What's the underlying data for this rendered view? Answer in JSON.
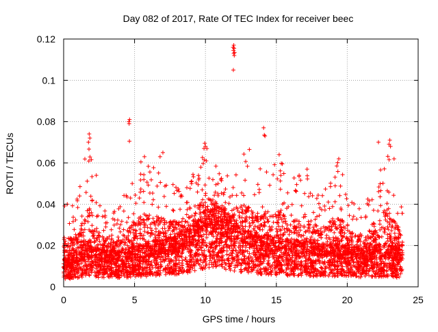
{
  "chart_data": {
    "type": "scatter",
    "title": "Day 082 of 2017, Rate Of TEC Index for receiver beec",
    "xlabel": "GPS time / hours",
    "ylabel": "ROTI / TECUs",
    "xlim": [
      0,
      25
    ],
    "ylim": [
      0,
      0.12
    ],
    "xticks": [
      0,
      5,
      10,
      15,
      20,
      25
    ],
    "xtick_labels": [
      "0",
      "5",
      "10",
      "15",
      "20",
      "25"
    ],
    "yticks": [
      0,
      0.02,
      0.04,
      0.06,
      0.08,
      0.1,
      0.12
    ],
    "ytick_labels": [
      "0",
      "0.02",
      "0.04",
      "0.06",
      "0.08",
      "0.1",
      "0.12"
    ],
    "grid": true,
    "marker": "+",
    "color": "#ff0000",
    "data_range_x": [
      0,
      23.9
    ],
    "series": [
      {
        "name": "ROTI",
        "profile": [
          [
            0.0,
            0.0095,
            0.044
          ],
          [
            0.5,
            0.011,
            0.039
          ],
          [
            1.0,
            0.012,
            0.046
          ],
          [
            1.5,
            0.014,
            0.062
          ],
          [
            1.8,
            0.015,
            0.074
          ],
          [
            2.2,
            0.013,
            0.054
          ],
          [
            2.8,
            0.012,
            0.04
          ],
          [
            3.5,
            0.012,
            0.036
          ],
          [
            4.0,
            0.012,
            0.04
          ],
          [
            4.6,
            0.013,
            0.05
          ],
          [
            5.5,
            0.014,
            0.062
          ],
          [
            6.5,
            0.015,
            0.058
          ],
          [
            7.5,
            0.016,
            0.052
          ],
          [
            8.5,
            0.018,
            0.048
          ],
          [
            9.5,
            0.022,
            0.06
          ],
          [
            10.0,
            0.025,
            0.068
          ],
          [
            11.0,
            0.026,
            0.06
          ],
          [
            11.7,
            0.023,
            0.052
          ],
          [
            12.5,
            0.02,
            0.066
          ],
          [
            13.5,
            0.017,
            0.058
          ],
          [
            14.2,
            0.017,
            0.06
          ],
          [
            15.2,
            0.016,
            0.063
          ],
          [
            16.0,
            0.015,
            0.052
          ],
          [
            17.0,
            0.015,
            0.06
          ],
          [
            18.0,
            0.014,
            0.046
          ],
          [
            19.3,
            0.014,
            0.061
          ],
          [
            20.5,
            0.013,
            0.04
          ],
          [
            21.5,
            0.013,
            0.044
          ],
          [
            22.3,
            0.014,
            0.06
          ],
          [
            22.9,
            0.014,
            0.07
          ],
          [
            23.9,
            0.012,
            0.038
          ]
        ],
        "notable_points": [
          [
            12.0,
            0.117
          ],
          [
            11.95,
            0.116
          ],
          [
            12.02,
            0.1155
          ],
          [
            11.98,
            0.1145
          ],
          [
            12.05,
            0.1135
          ],
          [
            12.0,
            0.113
          ],
          [
            12.03,
            0.112
          ],
          [
            11.97,
            0.105
          ],
          [
            4.65,
            0.081
          ],
          [
            4.6,
            0.08
          ],
          [
            4.62,
            0.079
          ],
          [
            4.64,
            0.0705
          ],
          [
            14.1,
            0.077
          ],
          [
            14.15,
            0.0735
          ],
          [
            14.2,
            0.073
          ],
          [
            1.8,
            0.074
          ],
          [
            1.85,
            0.072
          ],
          [
            1.75,
            0.07
          ],
          [
            9.95,
            0.0695
          ],
          [
            10.0,
            0.068
          ],
          [
            9.9,
            0.067
          ],
          [
            22.2,
            0.07
          ],
          [
            23.0,
            0.071
          ],
          [
            22.95,
            0.069
          ],
          [
            23.05,
            0.068
          ],
          [
            7.0,
            0.065
          ],
          [
            13.1,
            0.0665
          ],
          [
            15.2,
            0.064
          ],
          [
            19.4,
            0.062
          ],
          [
            23.3,
            0.062
          ],
          [
            5.7,
            0.063
          ],
          [
            6.8,
            0.063
          ],
          [
            2.3,
            0.054
          ]
        ]
      }
    ]
  }
}
